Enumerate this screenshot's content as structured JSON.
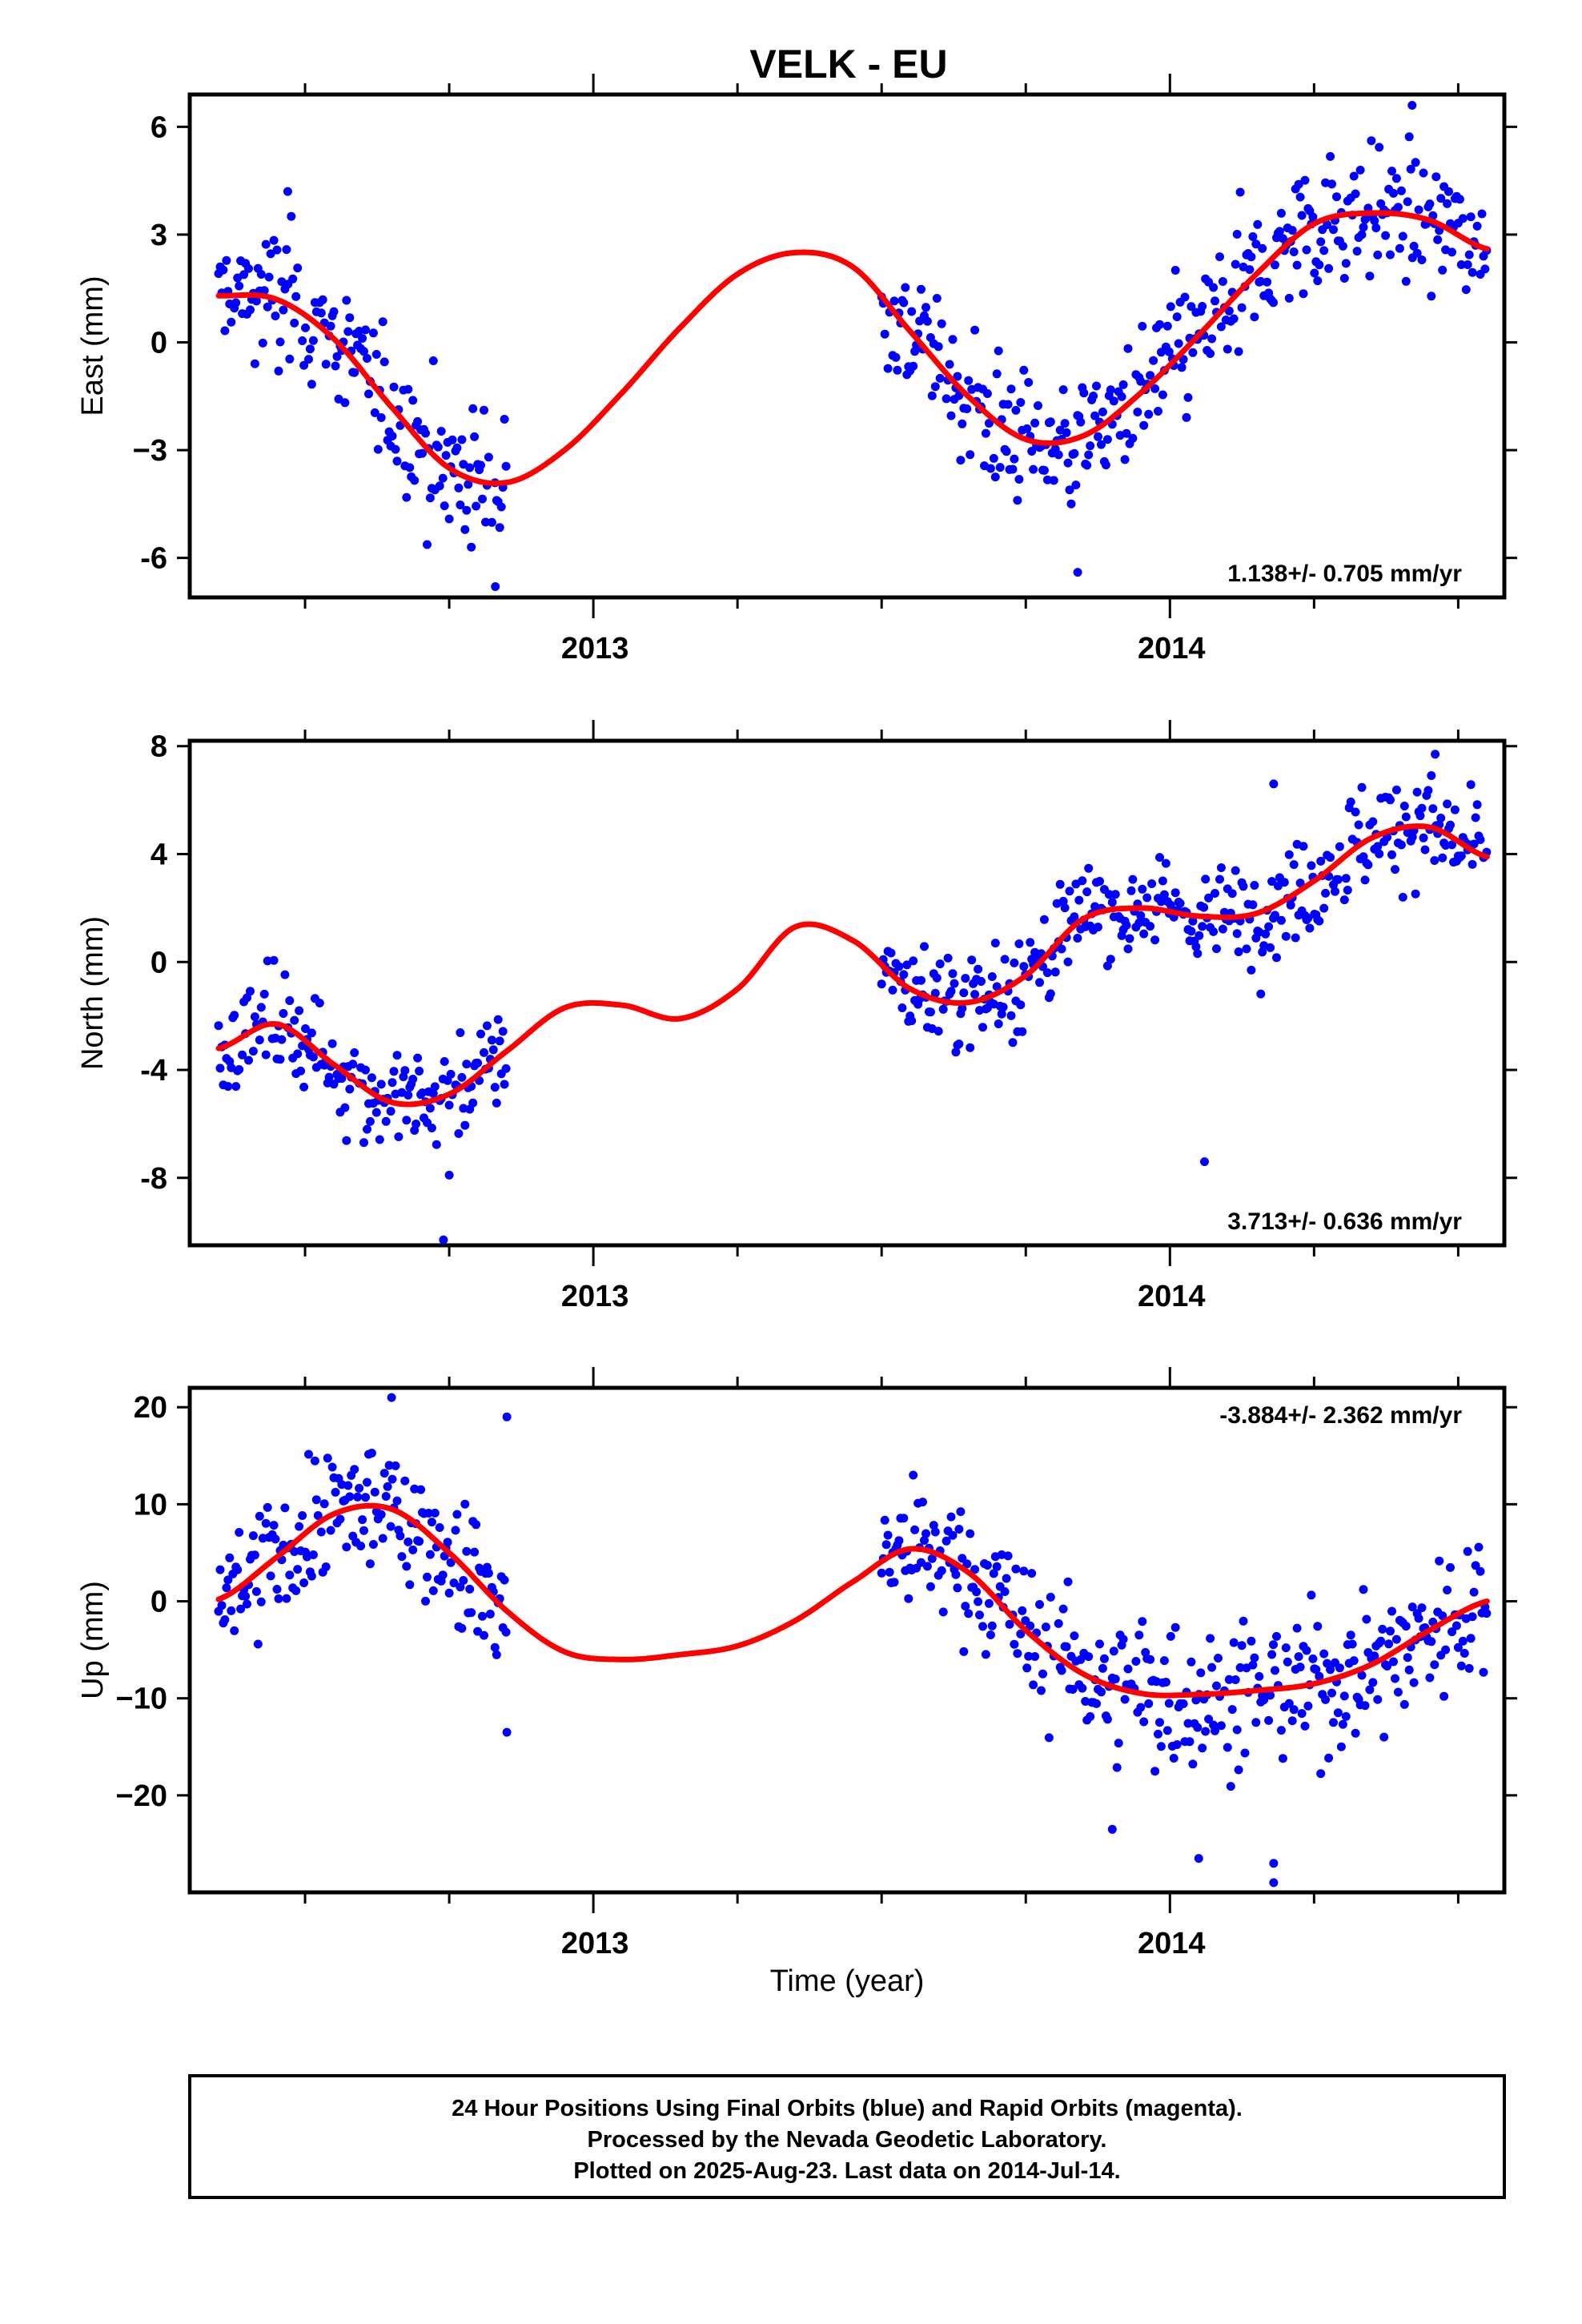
{
  "chart_data": {
    "type": "scatter",
    "title": "VELK - EU",
    "xlabel": "Time (year)",
    "xlim": [
      2012.3,
      2014.58
    ],
    "x_ticks": [
      2013,
      2014
    ],
    "x_tick_labels": [
      "2013",
      "2014"
    ],
    "x_minor_ticks": [
      2012.5,
      2012.75,
      2013.25,
      2013.5,
      2013.75,
      2014.25,
      2014.5
    ],
    "point_color": "#0000ff",
    "fit_color": "#ff0000",
    "data_segments": [
      [
        2012.35,
        2012.85
      ],
      [
        2013.5,
        2014.55
      ]
    ],
    "panels": [
      {
        "name": "east",
        "ylabel": "East (mm)",
        "ylim": [
          -7.1,
          6.9
        ],
        "y_ticks": [
          6,
          3,
          0,
          -3,
          -6
        ],
        "y_tick_labels": [
          "6",
          "3",
          "0",
          "−3",
          "-6"
        ],
        "rate_text": "1.138+/- 0.705 mm/yr",
        "rate_position": "bottom-right",
        "trend": 1.138,
        "scatter_sd": 0.95,
        "fit_curve": {
          "x": [
            2012.35,
            2012.45,
            2012.55,
            2012.65,
            2012.75,
            2012.85,
            2012.95,
            2013.05,
            2013.15,
            2013.25,
            2013.35,
            2013.45,
            2013.55,
            2013.65,
            2013.75,
            2013.85,
            2013.95,
            2014.05,
            2014.15,
            2014.25,
            2014.35,
            2014.45,
            2014.55
          ],
          "y": [
            1.3,
            1.2,
            0.1,
            -1.8,
            -3.5,
            -3.9,
            -3.0,
            -1.4,
            0.4,
            1.9,
            2.5,
            2.1,
            0.3,
            -1.5,
            -2.7,
            -2.6,
            -1.4,
            0.2,
            1.9,
            3.3,
            3.6,
            3.4,
            2.6
          ]
        },
        "outliers": [
          [
            2012.83,
            -6.8
          ],
          [
            2013.84,
            -6.4
          ],
          [
            2014.42,
            6.6
          ],
          [
            2012.47,
            4.2
          ]
        ]
      },
      {
        "name": "north",
        "ylabel": "North (mm)",
        "ylim": [
          -10.5,
          8.2
        ],
        "y_ticks": [
          8,
          4,
          0,
          -4,
          -8
        ],
        "y_tick_labels": [
          "8",
          "4",
          "0",
          "-4",
          "-8"
        ],
        "rate_text": "3.713+/- 0.636 mm/yr",
        "rate_position": "bottom-right",
        "trend": 3.713,
        "scatter_sd": 0.95,
        "fit_curve": {
          "x": [
            2012.35,
            2012.45,
            2012.55,
            2012.65,
            2012.75,
            2012.85,
            2012.95,
            2013.05,
            2013.15,
            2013.25,
            2013.35,
            2013.45,
            2013.55,
            2013.65,
            2013.75,
            2013.85,
            2013.95,
            2014.05,
            2014.15,
            2014.25,
            2014.35,
            2014.45,
            2014.55
          ],
          "y": [
            -3.2,
            -2.3,
            -3.8,
            -5.2,
            -4.9,
            -3.3,
            -1.7,
            -1.6,
            -2.1,
            -1.0,
            1.3,
            0.8,
            -1.0,
            -1.5,
            -0.5,
            1.6,
            2.0,
            1.7,
            1.8,
            3.0,
            4.6,
            5.0,
            3.9
          ]
        },
        "outliers": [
          [
            2012.74,
            -10.3
          ],
          [
            2014.06,
            -7.4
          ],
          [
            2014.46,
            7.7
          ],
          [
            2014.18,
            6.6
          ],
          [
            2012.75,
            -7.9
          ]
        ]
      },
      {
        "name": "up",
        "ylabel": "Up (mm)",
        "ylim": [
          -30,
          22
        ],
        "y_ticks": [
          20,
          10,
          0,
          -10,
          -20
        ],
        "y_tick_labels": [
          "20",
          "10",
          "0",
          "−10",
          "−20"
        ],
        "rate_text": "-3.884+/- 2.362 mm/yr",
        "rate_position": "top-right",
        "trend": -3.884,
        "scatter_sd": 3.6,
        "fit_curve": {
          "x": [
            2012.35,
            2012.45,
            2012.55,
            2012.65,
            2012.75,
            2012.85,
            2012.95,
            2013.05,
            2013.15,
            2013.25,
            2013.35,
            2013.45,
            2013.55,
            2013.65,
            2013.75,
            2013.85,
            2013.95,
            2014.05,
            2014.15,
            2014.25,
            2014.35,
            2014.45,
            2014.55
          ],
          "y": [
            0.2,
            4.5,
            9.0,
            9.5,
            5.0,
            -1.0,
            -5.2,
            -6.0,
            -5.5,
            -4.6,
            -2.0,
            2.0,
            5.4,
            3.0,
            -3.0,
            -7.5,
            -9.5,
            -9.6,
            -9.2,
            -8.5,
            -6.5,
            -3.0,
            0.0
          ]
        },
        "outliers": [
          [
            2012.65,
            21.0
          ],
          [
            2012.85,
            19.0
          ],
          [
            2012.85,
            -13.5
          ],
          [
            2014.18,
            -29.0
          ],
          [
            2014.05,
            -26.5
          ],
          [
            2013.9,
            -23.5
          ],
          [
            2014.18,
            -27.0
          ]
        ]
      }
    ]
  },
  "footer": {
    "line1": "24 Hour Positions Using Final Orbits (blue) and Rapid Orbits (magenta).",
    "line2": "Processed by the Nevada Geodetic Laboratory.",
    "line3": "Plotted on 2025-Aug-23. Last data on 2014-Jul-14."
  }
}
